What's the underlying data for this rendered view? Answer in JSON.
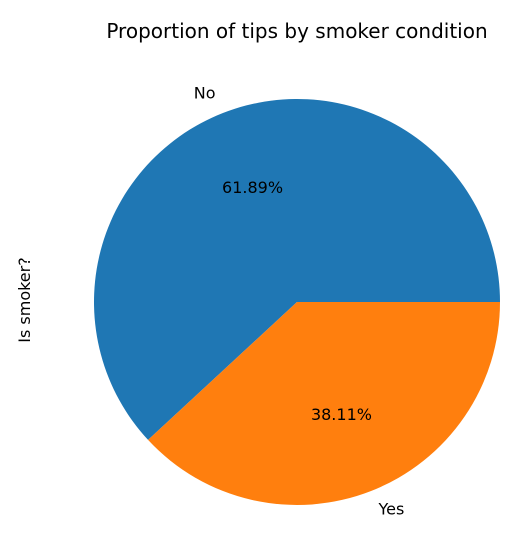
{
  "chart_data": {
    "type": "pie",
    "title": "Proportion of tips by smoker condition",
    "ylabel": "Is smoker?",
    "categories": [
      "No",
      "Yes"
    ],
    "values": [
      61.89,
      38.11
    ],
    "percent_labels": [
      "61.89%",
      "38.11%"
    ],
    "colors": [
      "#1f77b4",
      "#ff7f0e"
    ],
    "start_angle_deg": 0,
    "direction": "counterclockwise",
    "legend": "none",
    "grid": false
  }
}
